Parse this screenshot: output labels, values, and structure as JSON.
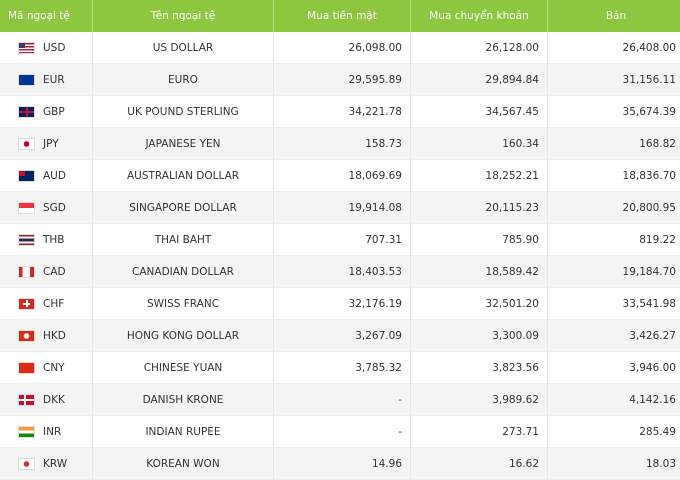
{
  "table": {
    "header": [
      "Mã ngoại tệ",
      "Tên ngoại tệ",
      "Mua tiền mặt",
      "Mua chuyển khoản",
      "Bán"
    ],
    "rows": [
      [
        "USD",
        "US DOLLAR",
        "26,098.00",
        "26,128.00",
        "26,408.00"
      ],
      [
        "EUR",
        "EURO",
        "29,595.89",
        "29,894.84",
        "31,156.11"
      ],
      [
        "GBP",
        "UK POUND STERLING",
        "34,221.78",
        "34,567.45",
        "35,674.39"
      ],
      [
        "JPY",
        "JAPANESE YEN",
        "158.73",
        "160.34",
        "168.82"
      ],
      [
        "AUD",
        "AUSTRALIAN DOLLAR",
        "18,069.69",
        "18,252.21",
        "18,836.70"
      ],
      [
        "SGD",
        "SINGAPORE DOLLAR",
        "19,914.08",
        "20,115.23",
        "20,800.95"
      ],
      [
        "THB",
        "THAI BAHT",
        "707.31",
        "785.90",
        "819.22"
      ],
      [
        "CAD",
        "CANADIAN DOLLAR",
        "18,403.53",
        "18,589.42",
        "19,184.70"
      ],
      [
        "CHF",
        "SWISS FRANC",
        "32,176.19",
        "32,501.20",
        "33,541.98"
      ],
      [
        "HKD",
        "HONG KONG DOLLAR",
        "3,267.09",
        "3,300.09",
        "3,426.27"
      ],
      [
        "CNY",
        "CHINESE YUAN",
        "3,785.32",
        "3,823.56",
        "3,946.00"
      ],
      [
        "DKK",
        "DANISH KRONE",
        "-",
        "3,989.62",
        "4,142.16"
      ],
      [
        "INR",
        "INDIAN RUPEE",
        "-",
        "273.71",
        "285.49"
      ],
      [
        "KRW",
        "KOREAN WON",
        "14.96",
        "16.62",
        "18.03"
      ]
    ]
  }
}
